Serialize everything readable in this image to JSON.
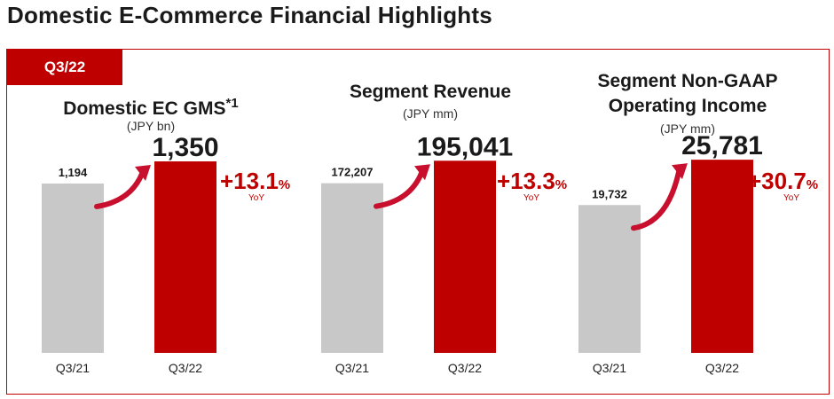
{
  "page_title": "Domestic E-Commerce Financial Highlights",
  "period_badge": "Q3/22",
  "colors": {
    "accent": "#bf0000",
    "prior_bar": "#c8c8c8",
    "arrow": "#c8102e"
  },
  "chart_data": [
    {
      "type": "bar",
      "title": "Domestic EC GMS",
      "title_suffix": "*1",
      "unit": "(JPY bn)",
      "categories": [
        "Q3/21",
        "Q3/22"
      ],
      "values": [
        1194,
        1350
      ],
      "value_labels": [
        "1,194",
        "1,350"
      ],
      "growth": "+13.1",
      "growth_unit": "%",
      "growth_label": "YoY",
      "ylim": [
        0,
        1500
      ]
    },
    {
      "type": "bar",
      "title": "Segment Revenue",
      "title_suffix": "",
      "unit": "(JPY mm)",
      "categories": [
        "Q3/21",
        "Q3/22"
      ],
      "values": [
        172207,
        195041
      ],
      "value_labels": [
        "172,207",
        "195,041"
      ],
      "growth": "+13.3",
      "growth_unit": "%",
      "growth_label": "YoY",
      "ylim": [
        0,
        216000
      ]
    },
    {
      "type": "bar",
      "title": "Segment Non-GAAP Operating Income",
      "title_line1": "Segment Non-GAAP",
      "title_line2": "Operating Income",
      "title_suffix": "",
      "unit": "(JPY mm)",
      "categories": [
        "Q3/21",
        "Q3/22"
      ],
      "values": [
        19732,
        25781
      ],
      "value_labels": [
        "19,732",
        "25,781"
      ],
      "growth": "+30.7",
      "growth_unit": "%",
      "growth_label": "YoY",
      "ylim": [
        0,
        28400
      ]
    }
  ]
}
